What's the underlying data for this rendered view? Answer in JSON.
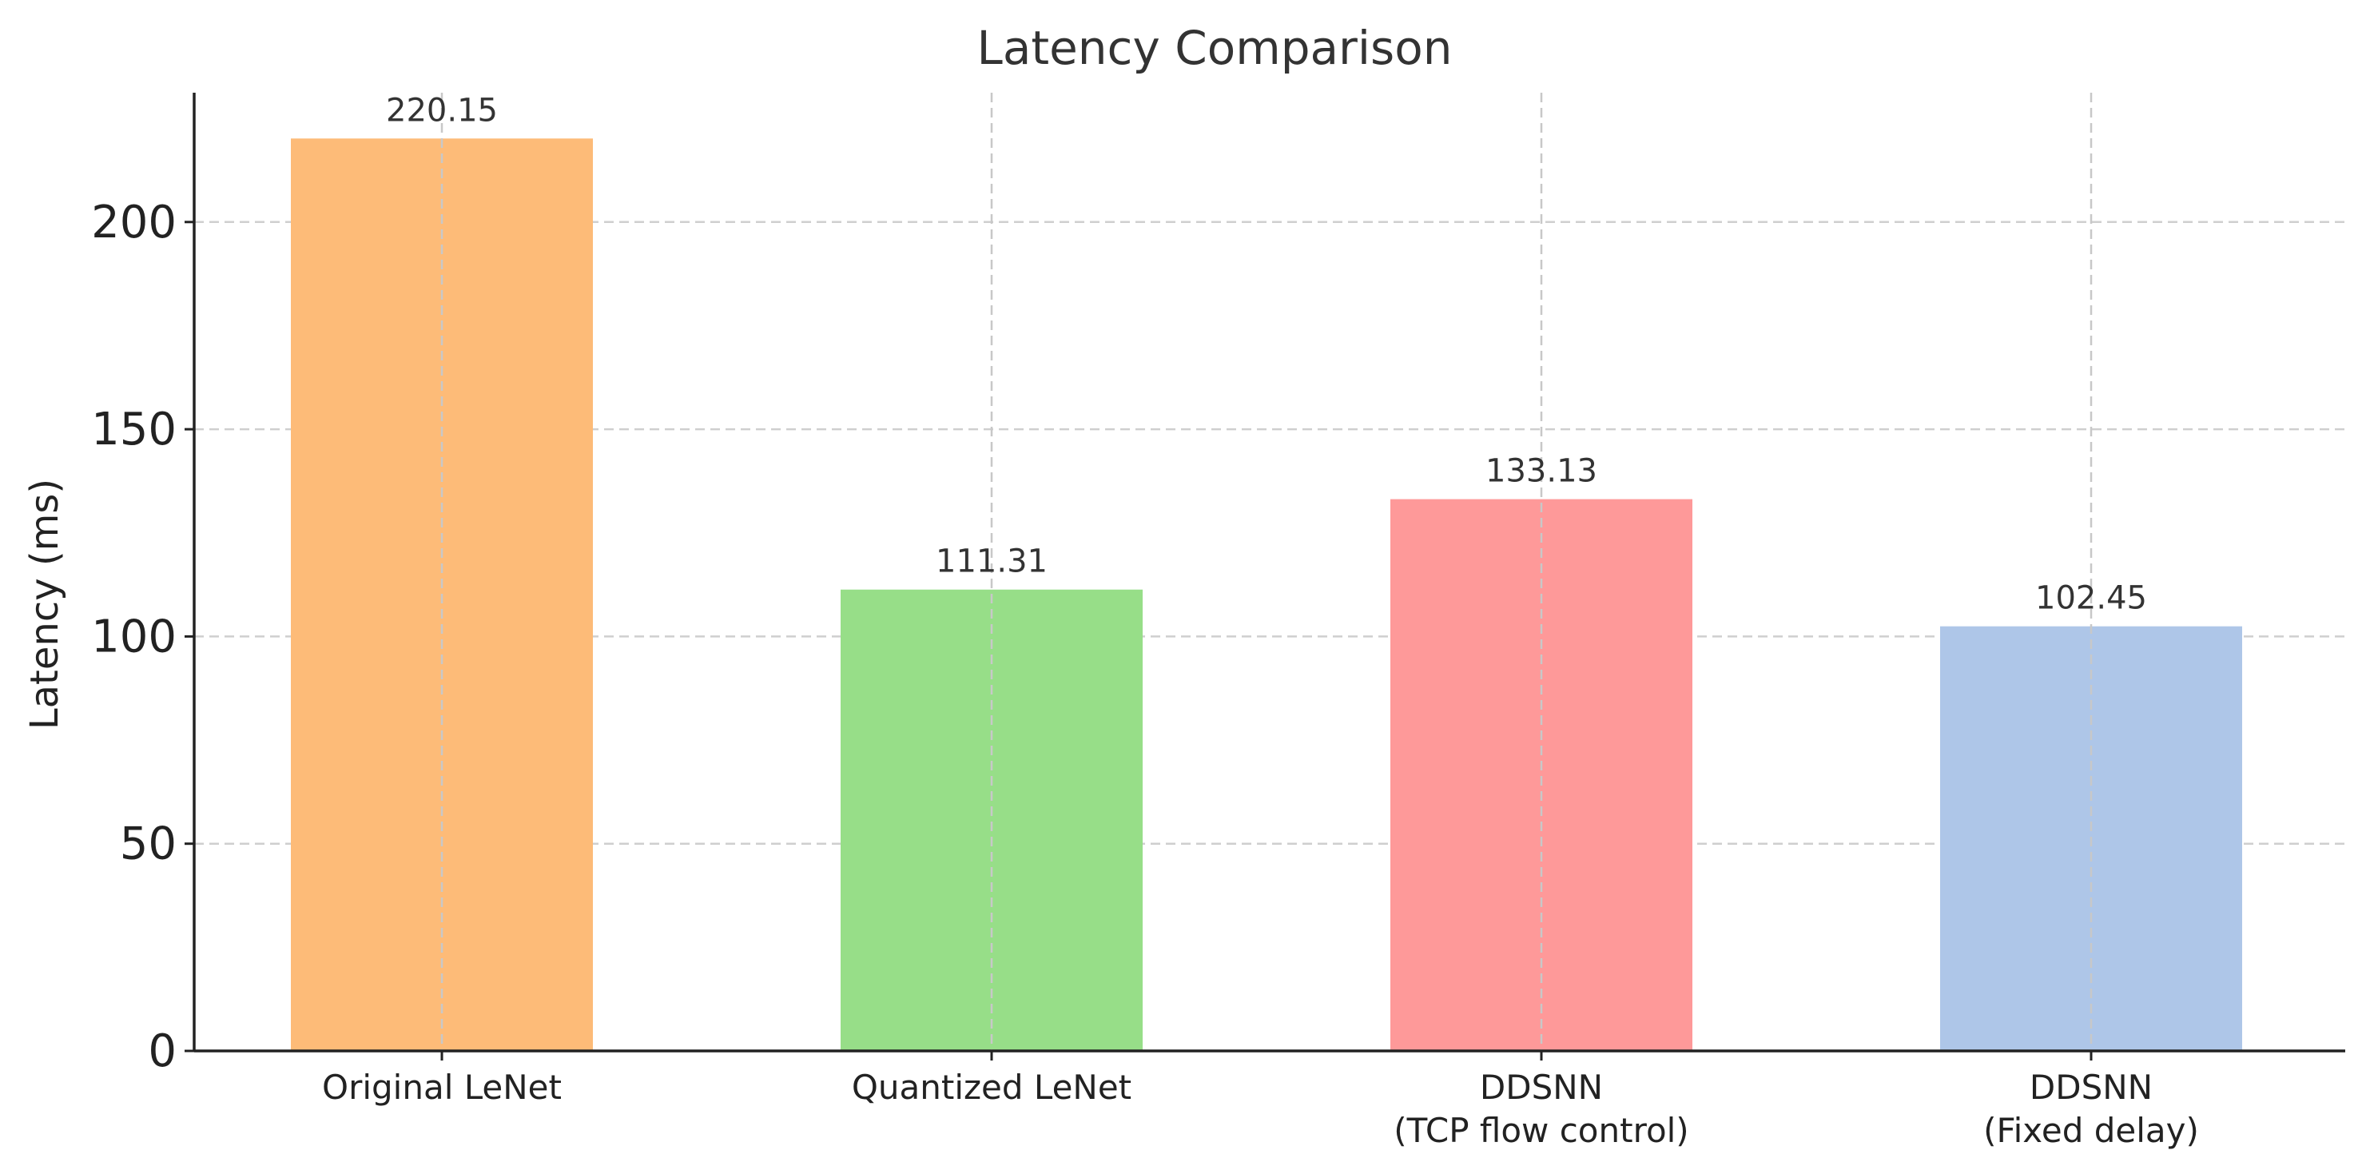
{
  "chart_data": {
    "type": "bar",
    "title": "Latency Comparison",
    "xlabel": "",
    "ylabel": "Latency (ms)",
    "categories": [
      [
        "Original LeNet"
      ],
      [
        "Quantized LeNet"
      ],
      [
        "DDSNN",
        "(TCP flow control)"
      ],
      [
        "DDSNN",
        "(Fixed delay)"
      ]
    ],
    "values": [
      220.15,
      111.31,
      133.13,
      102.45
    ],
    "value_labels": [
      "220.15",
      "111.31",
      "133.13",
      "102.45"
    ],
    "colors": [
      "#FDBB78",
      "#97DE88",
      "#FE9999",
      "#AEC6E8"
    ],
    "ylim": [
      0,
      231.2
    ],
    "yticks": [
      0,
      50,
      100,
      150,
      200
    ],
    "grid": true
  }
}
